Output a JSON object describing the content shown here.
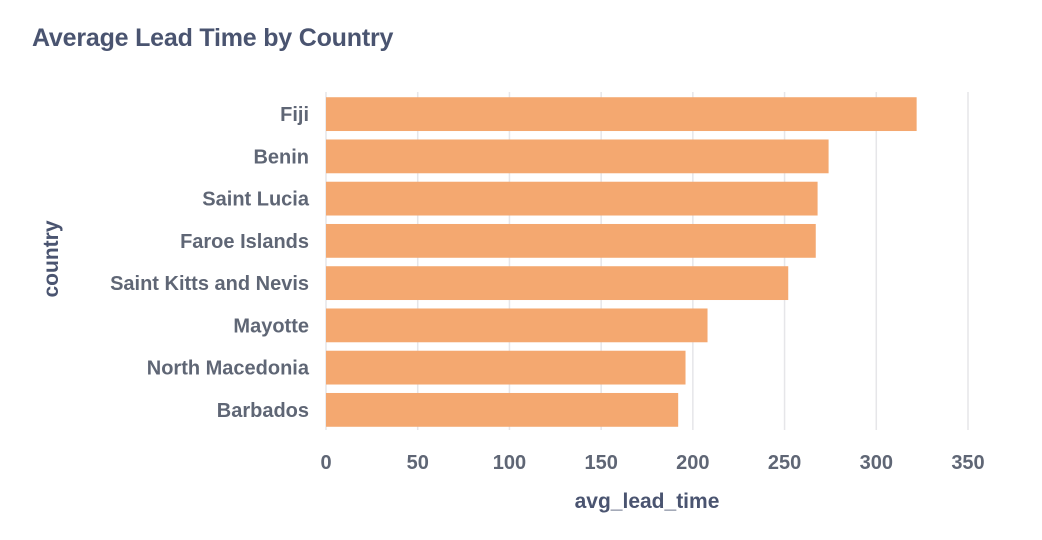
{
  "chart_data": {
    "type": "bar",
    "orientation": "horizontal",
    "title": "Average Lead Time by Country",
    "xlabel": "avg_lead_time",
    "ylabel": "country",
    "categories": [
      "Fiji",
      "Benin",
      "Saint Lucia",
      "Faroe Islands",
      "Saint Kitts and Nevis",
      "Mayotte",
      "North Macedonia",
      "Barbados"
    ],
    "values": [
      322,
      274,
      268,
      267,
      252,
      208,
      196,
      192
    ],
    "xlim": [
      0,
      350
    ],
    "xticks": [
      0,
      50,
      100,
      150,
      200,
      250,
      300,
      350
    ],
    "grid": true,
    "bar_color": "#f4a870"
  }
}
